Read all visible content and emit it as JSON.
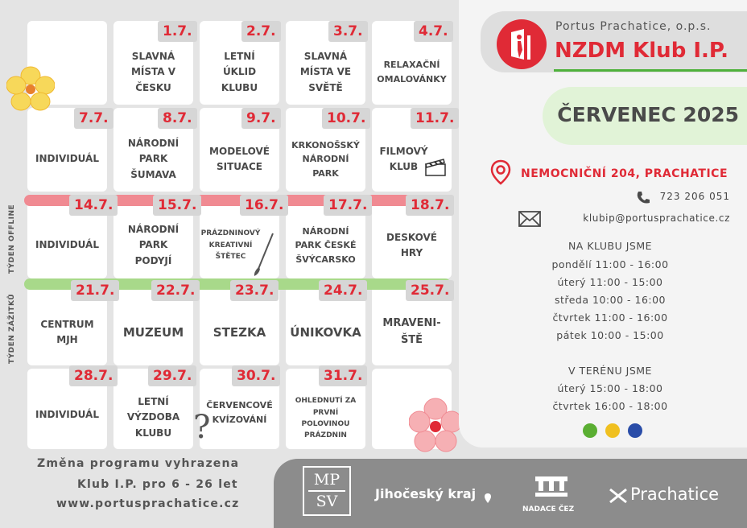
{
  "org": {
    "name_small": "Portus Prachatice, o.p.s.",
    "name_big": "NZDM Klub I.P."
  },
  "month": "ČERVENEC 2025",
  "contact": {
    "address": "NEMOCNIČNÍ 204, PRACHATICE",
    "phone": "723 206 051",
    "email": "klubip@portusprachatice.cz"
  },
  "hours_club": {
    "heading": "NA KLUBU JSME",
    "lines": [
      "pondělí 11:00 - 16:00",
      "úterý 11:00 - 15:00",
      "středa 10:00 - 16:00",
      "čtvrtek 11:00 - 16:00",
      "pátek 10:00 - 15:00"
    ]
  },
  "hours_field": {
    "heading": "V TERÉNU JSME",
    "lines": [
      "úterý 15:00 - 18:00",
      "čtvrtek 16:00 - 18:00"
    ]
  },
  "week_labels": {
    "offline": "TÝDEN OFFLINE",
    "zazitku": "TÝDEN ZÁŽITKŮ"
  },
  "calendar": {
    "row1": [
      {
        "date": "",
        "text": ""
      },
      {
        "date": "1.7.",
        "text": "SLAVNÁ\nMÍSTA V\nČESKU"
      },
      {
        "date": "2.7.",
        "text": "LETNÍ\nÚKLID\nKLUBU"
      },
      {
        "date": "3.7.",
        "text": "SLAVNÁ\nMÍSTA VE\nSVĚTĚ"
      },
      {
        "date": "4.7.",
        "text": "RELAXAČNÍ\nOMALOVÁNKY"
      }
    ],
    "row2": [
      {
        "date": "7.7.",
        "text": "INDIVIDUÁL"
      },
      {
        "date": "8.7.",
        "text": "NÁRODNÍ\nPARK\nŠUMAVA"
      },
      {
        "date": "9.7.",
        "text": "MODELOVÉ\nSITUACE"
      },
      {
        "date": "10.7.",
        "text": "KRKONOŠSKÝ\nNÁRODNÍ\nPARK"
      },
      {
        "date": "11.7.",
        "text": "FILMOVÝ\nKLUB"
      }
    ],
    "row3": [
      {
        "date": "14.7.",
        "text": "INDIVIDUÁL"
      },
      {
        "date": "15.7.",
        "text": "NÁRODNÍ\nPARK\nPODYJÍ"
      },
      {
        "date": "16.7.",
        "text": "PRÁZDNINOVÝ\nKREATIVNÍ\nŠTĚTEC"
      },
      {
        "date": "17.7.",
        "text": "NÁRODNÍ\nPARK ČESKÉ\nŠVÝCARSKO"
      },
      {
        "date": "18.7.",
        "text": "DESKOVÉ\nHRY"
      }
    ],
    "row4": [
      {
        "date": "21.7.",
        "text": "CENTRUM\nMJH"
      },
      {
        "date": "22.7.",
        "text": "MUZEUM"
      },
      {
        "date": "23.7.",
        "text": "STEZKA"
      },
      {
        "date": "24.7.",
        "text": "ÚNIKOVKA"
      },
      {
        "date": "25.7.",
        "text": "MRAVENI-\nŠTĚ"
      }
    ],
    "row5": [
      {
        "date": "28.7.",
        "text": "INDIVIDUÁL"
      },
      {
        "date": "29.7.",
        "text": "LETNÍ\nVÝZDOBA\nKLUBU"
      },
      {
        "date": "30.7.",
        "text": "ČERVENCOVÉ\nKVÍZOVÁNÍ"
      },
      {
        "date": "31.7.",
        "text": "OHLEDNUTÍ ZA\nPRVNÍ\nPOLOVINOU\nPRÁZDNIN"
      },
      {
        "date": "",
        "text": ""
      }
    ]
  },
  "notes": {
    "line1": "Změna programu vyhrazena",
    "line2": "Klub I.P. pro  6 - 26  let",
    "line3": "www.portusprachatice.cz"
  },
  "sponsors": {
    "mpsv_top": "MP",
    "mpsv_bottom": "SV",
    "jihocesky": "Jihočeský kraj",
    "cez": "NADACE ČEZ",
    "prachatice": "Prachatice"
  },
  "colors": {
    "accent_red": "#e02a36",
    "band_red": "#f08a92",
    "band_green": "#a8d98a",
    "dot_green": "#5aae32",
    "dot_yellow": "#f0c020",
    "dot_blue": "#2a4da8"
  }
}
